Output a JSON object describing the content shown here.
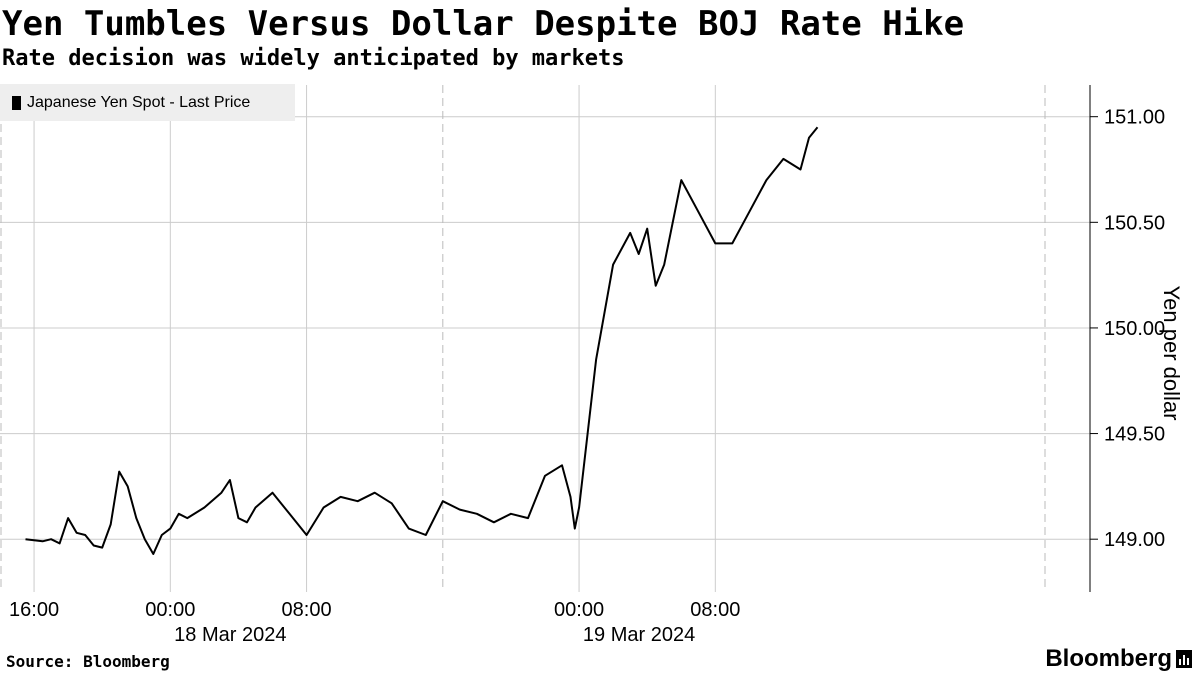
{
  "header": {
    "title": "Yen Tumbles Versus Dollar Despite BOJ Rate Hike",
    "subtitle": "Rate decision was widely anticipated by markets"
  },
  "legend": {
    "label": "Japanese Yen Spot - Last Price"
  },
  "axis": {
    "ylabel": "Yen per dollar"
  },
  "footer": {
    "source": "Source: Bloomberg",
    "brand": "Bloomberg"
  },
  "colors": {
    "line": "#000000",
    "grid": "#cccccc",
    "legend_bg": "#eeeeee"
  },
  "chart_data": {
    "type": "line",
    "title": "Yen Tumbles Versus Dollar Despite BOJ Rate Hike",
    "subtitle": "Rate decision was widely anticipated by markets",
    "xlabel": "",
    "ylabel": "Yen per dollar",
    "ylim": [
      148.75,
      151.15
    ],
    "yticks": [
      149.0,
      149.5,
      150.0,
      150.5,
      151.0
    ],
    "ytick_labels": [
      "149.00",
      "149.50",
      "150.00",
      "150.50",
      "151.00"
    ],
    "xlim": [
      "2024-03-17 14:00",
      "2024-03-20 06:00"
    ],
    "xticks": [
      {
        "time": "2024-03-17 16:00",
        "label": "16:00",
        "date_label": ""
      },
      {
        "time": "2024-03-18 00:00",
        "label": "00:00",
        "date_label": "18 Mar 2024"
      },
      {
        "time": "2024-03-18 08:00",
        "label": "08:00",
        "date_label": ""
      },
      {
        "time": "2024-03-19 00:00",
        "label": "00:00",
        "date_label": "19 Mar 2024"
      },
      {
        "time": "2024-03-19 08:00",
        "label": "08:00",
        "date_label": ""
      }
    ],
    "day_separators": [
      "2024-03-17 14:00",
      "2024-03-18 16:00",
      "2024-03-20 06:00"
    ],
    "grid": true,
    "legend_position": "top-left",
    "series": [
      {
        "name": "Japanese Yen Spot - Last Price",
        "x": [
          "2024-03-17 15:30",
          "2024-03-17 16:30",
          "2024-03-17 17:00",
          "2024-03-17 17:30",
          "2024-03-17 18:00",
          "2024-03-17 18:30",
          "2024-03-17 19:00",
          "2024-03-17 19:30",
          "2024-03-17 20:00",
          "2024-03-17 20:30",
          "2024-03-17 21:00",
          "2024-03-17 21:30",
          "2024-03-17 22:00",
          "2024-03-17 22:30",
          "2024-03-17 23:00",
          "2024-03-17 23:30",
          "2024-03-18 00:00",
          "2024-03-18 00:30",
          "2024-03-18 01:00",
          "2024-03-18 02:00",
          "2024-03-18 03:00",
          "2024-03-18 03:30",
          "2024-03-18 04:00",
          "2024-03-18 04:30",
          "2024-03-18 05:00",
          "2024-03-18 06:00",
          "2024-03-18 07:00",
          "2024-03-18 08:00",
          "2024-03-18 09:00",
          "2024-03-18 10:00",
          "2024-03-18 11:00",
          "2024-03-18 12:00",
          "2024-03-18 13:00",
          "2024-03-18 14:00",
          "2024-03-18 15:00",
          "2024-03-18 16:00",
          "2024-03-18 17:00",
          "2024-03-18 18:00",
          "2024-03-18 19:00",
          "2024-03-18 20:00",
          "2024-03-18 21:00",
          "2024-03-18 22:00",
          "2024-03-18 23:00",
          "2024-03-18 23:30",
          "2024-03-18 23:45",
          "2024-03-19 00:00",
          "2024-03-19 00:30",
          "2024-03-19 01:00",
          "2024-03-19 02:00",
          "2024-03-19 03:00",
          "2024-03-19 03:30",
          "2024-03-19 04:00",
          "2024-03-19 04:30",
          "2024-03-19 05:00",
          "2024-03-19 06:00",
          "2024-03-19 07:00",
          "2024-03-19 08:00",
          "2024-03-19 09:00",
          "2024-03-19 10:00",
          "2024-03-19 11:00",
          "2024-03-19 12:00",
          "2024-03-19 13:00",
          "2024-03-19 13:30",
          "2024-03-19 14:00"
        ],
        "y": [
          149.0,
          148.99,
          149.0,
          148.98,
          149.1,
          149.03,
          149.02,
          148.97,
          148.96,
          149.07,
          149.32,
          149.25,
          149.1,
          149.0,
          148.93,
          149.02,
          149.05,
          149.12,
          149.1,
          149.15,
          149.22,
          149.28,
          149.1,
          149.08,
          149.15,
          149.22,
          149.12,
          149.02,
          149.15,
          149.2,
          149.18,
          149.22,
          149.17,
          149.05,
          149.02,
          149.18,
          149.14,
          149.12,
          149.08,
          149.12,
          149.1,
          149.3,
          149.35,
          149.2,
          149.05,
          149.15,
          149.5,
          149.85,
          150.3,
          150.45,
          150.35,
          150.47,
          150.2,
          150.3,
          150.7,
          150.55,
          150.4,
          150.4,
          150.55,
          150.7,
          150.8,
          150.75,
          150.9,
          150.95
        ]
      }
    ]
  }
}
